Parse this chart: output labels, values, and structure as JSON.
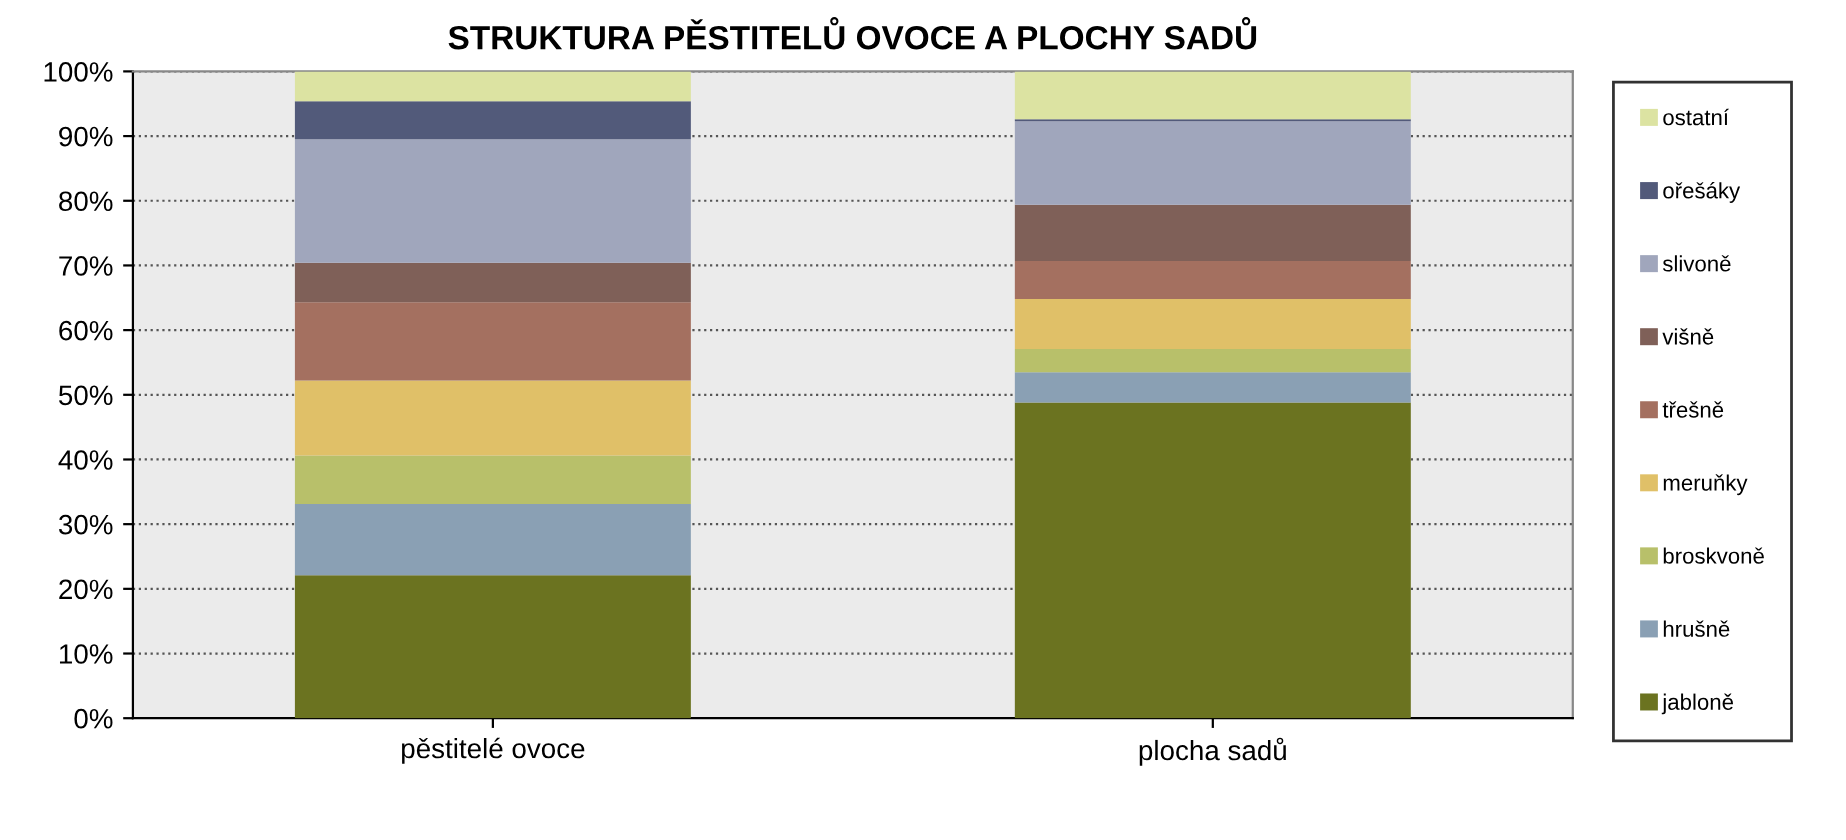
{
  "chart_data": {
    "type": "bar",
    "title": "STRUKTURA PĚSTITELŮ OVOCE A PLOCHY SADŮ",
    "categories": [
      "pěstitelé ovoce",
      "plocha sadů"
    ],
    "stacked": true,
    "series": [
      {
        "name": "jabloně",
        "color": "#6b7320",
        "values": [
          22.1,
          48.8
        ]
      },
      {
        "name": "hrušně",
        "color": "#8aa0b4",
        "values": [
          11.0,
          4.7
        ]
      },
      {
        "name": "broskvoně",
        "color": "#b8c06a",
        "values": [
          7.5,
          3.6
        ]
      },
      {
        "name": "meruňky",
        "color": "#e0c068",
        "values": [
          11.6,
          7.7
        ]
      },
      {
        "name": "třešně",
        "color": "#a47060",
        "values": [
          12.1,
          5.9
        ]
      },
      {
        "name": "višně",
        "color": "#7f6058",
        "values": [
          6.1,
          8.7
        ]
      },
      {
        "name": "slivoně",
        "color": "#a0a6bc",
        "values": [
          19.1,
          12.9
        ]
      },
      {
        "name": "ořešáky",
        "color": "#525a7a",
        "values": [
          5.9,
          0.3
        ]
      },
      {
        "name": "ostatní",
        "color": "#dce3a2",
        "values": [
          4.6,
          7.4
        ]
      }
    ],
    "ylim": [
      0,
      100
    ],
    "yticks": [
      {
        "value": 0,
        "label": "0%"
      },
      {
        "value": 10,
        "label": "10%"
      },
      {
        "value": 20,
        "label": "20%"
      },
      {
        "value": 30,
        "label": "30%"
      },
      {
        "value": 40,
        "label": "40%"
      },
      {
        "value": 50,
        "label": "50%"
      },
      {
        "value": 60,
        "label": "60%"
      },
      {
        "value": 70,
        "label": "70%"
      },
      {
        "value": 80,
        "label": "80%"
      },
      {
        "value": 90,
        "label": "90%"
      },
      {
        "value": 100,
        "label": "100%"
      }
    ],
    "grid": "y",
    "legend": "right"
  }
}
